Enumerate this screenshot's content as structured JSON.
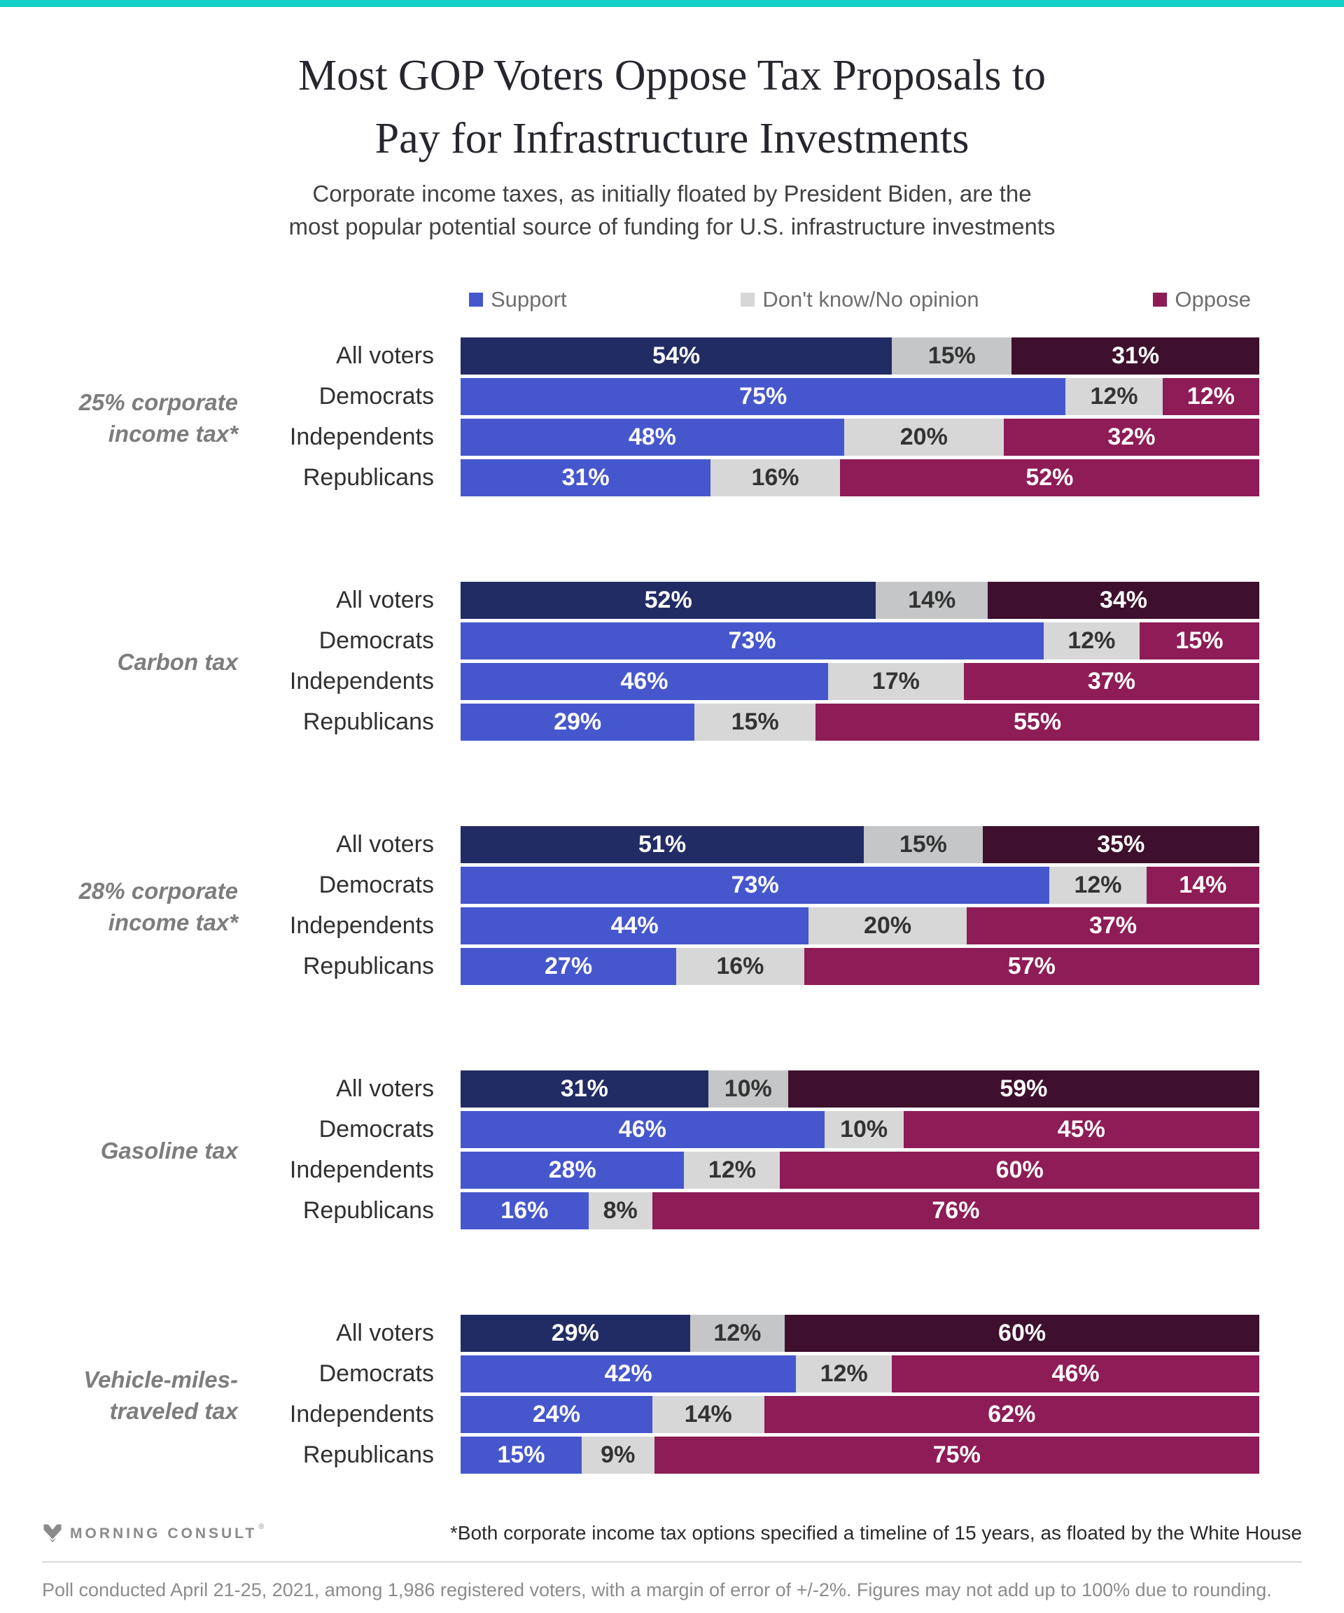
{
  "header": {
    "title_line1": "Most GOP Voters Oppose Tax Proposals to",
    "title_line2": "Pay for Infrastructure Investments",
    "subtitle_line1": "Corporate income taxes, as initially floated by President Biden, are the",
    "subtitle_line2": "most popular potential source of funding for U.S. infrastructure investments"
  },
  "colors": {
    "accent_top_bar": "#12d2c6",
    "all_voters": {
      "support": "#222c64",
      "dont_know": "#c5c6c7",
      "oppose": "#3e102d"
    },
    "party": {
      "support": "#4657cd",
      "dont_know": "#d7d7d7",
      "oppose": "#8e1c56"
    },
    "dont_know_text": "#333333",
    "segment_text": "#ffffff"
  },
  "legend": [
    {
      "label": "Support",
      "color": "#4657cd"
    },
    {
      "label": "Don't know/No opinion",
      "color": "#d7d7d7"
    },
    {
      "label": "Oppose",
      "color": "#8e1c56"
    }
  ],
  "chart_data": {
    "type": "bar",
    "orientation": "horizontal-stacked",
    "series_names": [
      "Support",
      "Don't know/No opinion",
      "Oppose"
    ],
    "row_categories": [
      "All voters",
      "Democrats",
      "Independents",
      "Republicans"
    ],
    "emphasized_category": "All voters",
    "value_unit": "%",
    "xlim": [
      0,
      100
    ],
    "grid": false,
    "legend_position": "top",
    "groups": [
      {
        "label": "25% corporate income tax*",
        "label_lines": [
          "25% corporate",
          "income tax*"
        ],
        "rows": [
          {
            "category": "All voters",
            "values": [
              54,
              15,
              31
            ]
          },
          {
            "category": "Democrats",
            "values": [
              75,
              12,
              12
            ]
          },
          {
            "category": "Independents",
            "values": [
              48,
              20,
              32
            ]
          },
          {
            "category": "Republicans",
            "values": [
              31,
              16,
              52
            ]
          }
        ]
      },
      {
        "label": "Carbon tax",
        "label_lines": [
          "Carbon tax"
        ],
        "rows": [
          {
            "category": "All voters",
            "values": [
              52,
              14,
              34
            ]
          },
          {
            "category": "Democrats",
            "values": [
              73,
              12,
              15
            ]
          },
          {
            "category": "Independents",
            "values": [
              46,
              17,
              37
            ]
          },
          {
            "category": "Republicans",
            "values": [
              29,
              15,
              55
            ]
          }
        ]
      },
      {
        "label": "28% corporate income tax*",
        "label_lines": [
          "28% corporate",
          "income tax*"
        ],
        "rows": [
          {
            "category": "All voters",
            "values": [
              51,
              15,
              35
            ]
          },
          {
            "category": "Democrats",
            "values": [
              73,
              12,
              14
            ]
          },
          {
            "category": "Independents",
            "values": [
              44,
              20,
              37
            ]
          },
          {
            "category": "Republicans",
            "values": [
              27,
              16,
              57
            ]
          }
        ]
      },
      {
        "label": "Gasoline tax",
        "label_lines": [
          "Gasoline tax"
        ],
        "rows": [
          {
            "category": "All voters",
            "values": [
              31,
              10,
              59
            ]
          },
          {
            "category": "Democrats",
            "values": [
              46,
              10,
              45
            ]
          },
          {
            "category": "Independents",
            "values": [
              28,
              12,
              60
            ]
          },
          {
            "category": "Republicans",
            "values": [
              16,
              8,
              76
            ]
          }
        ]
      },
      {
        "label": "Vehicle-miles-traveled tax",
        "label_lines": [
          "Vehicle-miles-",
          "traveled tax"
        ],
        "rows": [
          {
            "category": "All voters",
            "values": [
              29,
              12,
              60
            ]
          },
          {
            "category": "Democrats",
            "values": [
              42,
              12,
              46
            ]
          },
          {
            "category": "Independents",
            "values": [
              24,
              14,
              62
            ]
          },
          {
            "category": "Republicans",
            "values": [
              15,
              9,
              75
            ]
          }
        ]
      }
    ]
  },
  "footer": {
    "brand": "MORNING CONSULT",
    "brand_mark": "®",
    "footnote": "*Both corporate income tax options specified a timeline of 15 years, as floated by the White House",
    "poll_note": "Poll conducted April 21-25, 2021, among 1,986 registered voters, with a margin of error of +/-2%. Figures may not add up to 100% due to rounding."
  }
}
